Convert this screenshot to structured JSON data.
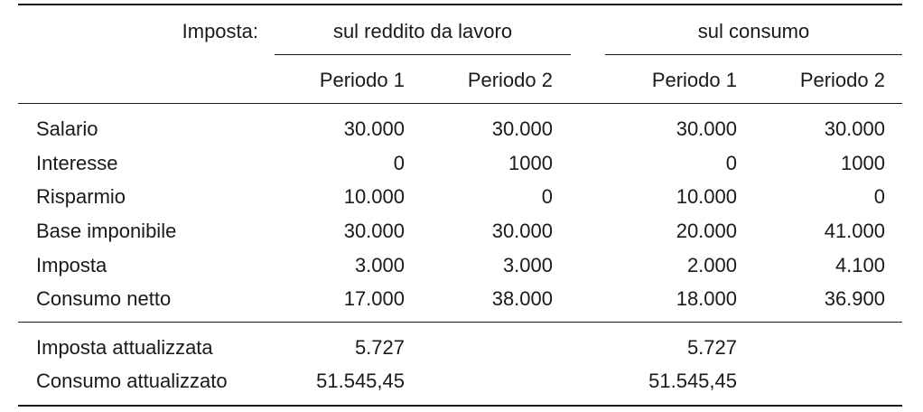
{
  "table": {
    "header": {
      "tax_label": "Imposta:",
      "groups": [
        {
          "label": "sul reddito da lavoro",
          "periods": [
            "Periodo 1",
            "Periodo 2"
          ]
        },
        {
          "label": "sul consumo",
          "periods": [
            "Periodo 1",
            "Periodo 2"
          ]
        }
      ]
    },
    "rows": [
      {
        "label": "Salario",
        "values": [
          "30.000",
          "30.000",
          "30.000",
          "30.000"
        ]
      },
      {
        "label": "Interesse",
        "values": [
          "0",
          "1000",
          "0",
          "1000"
        ]
      },
      {
        "label": "Risparmio",
        "values": [
          "10.000",
          "0",
          "10.000",
          "0"
        ]
      },
      {
        "label": "Base imponibile",
        "values": [
          "30.000",
          "30.000",
          "20.000",
          "41.000"
        ]
      },
      {
        "label": "Imposta",
        "values": [
          "3.000",
          "3.000",
          "2.000",
          "4.100"
        ]
      },
      {
        "label": "Consumo netto",
        "values": [
          "17.000",
          "38.000",
          "18.000",
          "36.900"
        ]
      }
    ],
    "summary": [
      {
        "label": "Imposta attualizzata",
        "values": [
          "5.727",
          "",
          "5.727",
          ""
        ]
      },
      {
        "label": "Consumo attualizzato",
        "values": [
          "51.545,45",
          "",
          "51.545,45",
          ""
        ]
      }
    ]
  }
}
